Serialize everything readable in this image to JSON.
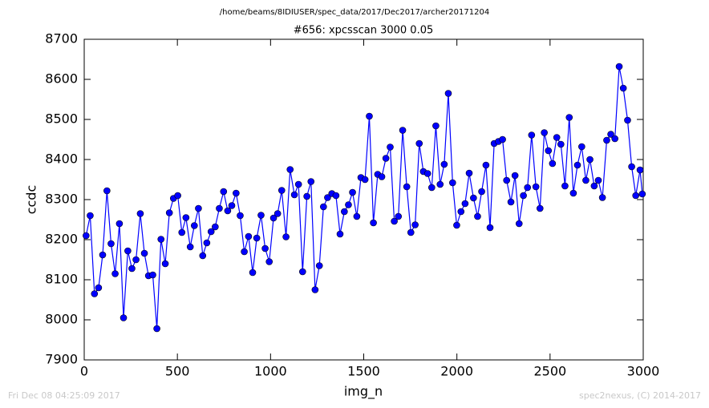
{
  "chart_data": {
    "type": "line",
    "title": "/home/beams/8IDIUSER/spec_data/2017/Dec2017/archer20171204",
    "subtitle": "#656: xpcsscan 3000 0.05",
    "xlabel": "img_n",
    "ylabel": "ccdc",
    "x": [
      10,
      32,
      55,
      77,
      99,
      122,
      144,
      166,
      189,
      211,
      234,
      256,
      278,
      301,
      323,
      345,
      368,
      390,
      412,
      435,
      457,
      479,
      502,
      524,
      546,
      569,
      591,
      613,
      636,
      658,
      681,
      703,
      725,
      748,
      770,
      792,
      815,
      837,
      859,
      882,
      904,
      926,
      949,
      971,
      993,
      1016,
      1038,
      1060,
      1083,
      1105,
      1128,
      1150,
      1172,
      1195,
      1217,
      1239,
      1262,
      1284,
      1306,
      1329,
      1351,
      1373,
      1396,
      1418,
      1440,
      1463,
      1485,
      1507,
      1530,
      1552,
      1575,
      1597,
      1619,
      1642,
      1664,
      1686,
      1709,
      1731,
      1753,
      1776,
      1798,
      1820,
      1843,
      1865,
      1887,
      1910,
      1932,
      1954,
      1977,
      1999,
      2022,
      2044,
      2066,
      2089,
      2111,
      2133,
      2156,
      2178,
      2200,
      2223,
      2245,
      2267,
      2290,
      2312,
      2334,
      2357,
      2379,
      2401,
      2424,
      2446,
      2469,
      2491,
      2513,
      2536,
      2558,
      2580,
      2603,
      2625,
      2647,
      2670,
      2692,
      2714,
      2737,
      2759,
      2781,
      2804,
      2826,
      2848,
      2871,
      2893,
      2916,
      2938,
      2960,
      2983,
      2995
    ],
    "series": [
      {
        "color": "#0000ff",
        "values": [
          8210,
          8260,
          8065,
          8080,
          8162,
          8322,
          8190,
          8115,
          8240,
          8005,
          8172,
          8128,
          8150,
          8265,
          8166,
          8110,
          8112,
          7978,
          8201,
          8140,
          8267,
          8303,
          8310,
          8218,
          8255,
          8182,
          8235,
          8278,
          8160,
          8192,
          8220,
          8232,
          8278,
          8320,
          8272,
          8285,
          8316,
          8260,
          8170,
          8208,
          8118,
          8204,
          8261,
          8178,
          8145,
          8254,
          8265,
          8323,
          8207,
          8375,
          8312,
          8338,
          8120,
          8308,
          8345,
          8075,
          8135,
          8282,
          8305,
          8315,
          8310,
          8214,
          8270,
          8287,
          8318,
          8258,
          8355,
          8350,
          8508,
          8242,
          8363,
          8357,
          8403,
          8431,
          8246,
          8258,
          8473,
          8332,
          8218,
          8237,
          8440,
          8370,
          8365,
          8330,
          8484,
          8338,
          8388,
          8565,
          8342,
          8236,
          8270,
          8290,
          8366,
          8304,
          8258,
          8320,
          8386,
          8230,
          8440,
          8445,
          8450,
          8348,
          8294,
          8360,
          8240,
          8310,
          8330,
          8461,
          8332,
          8278,
          8467,
          8422,
          8390,
          8455,
          8438,
          8334,
          8505,
          8316,
          8386,
          8432,
          8348,
          8400,
          8334,
          8348,
          8305,
          8448,
          8463,
          8452,
          8632,
          8578,
          8498,
          8382,
          8310,
          8374,
          8314
        ]
      }
    ],
    "xlim": [
      0,
      3000
    ],
    "xticks": [
      0,
      500,
      1000,
      1500,
      2000,
      2500,
      3000
    ],
    "ylim": [
      7900,
      8700
    ],
    "yticks": [
      7900,
      8000,
      8100,
      8200,
      8300,
      8400,
      8500,
      8600,
      8700
    ],
    "grid": false
  },
  "footer": {
    "left": "Fri Dec 08 04:25:09 2017",
    "right": "spec2nexus, (C) 2014-2017"
  }
}
